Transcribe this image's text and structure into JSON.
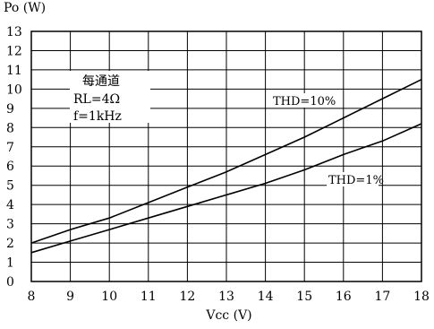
{
  "chart_data": {
    "type": "line",
    "ylabel": "Po  (W)",
    "xlabel": "Vcc  (V)",
    "xlim": [
      8,
      18
    ],
    "ylim": [
      0,
      13
    ],
    "x_ticks": [
      "8",
      "9",
      "10",
      "11",
      "12",
      "13",
      "14",
      "15",
      "16",
      "17",
      "18"
    ],
    "y_ticks": [
      "0",
      "1",
      "2",
      "3",
      "4",
      "5",
      "6",
      "7",
      "8",
      "9",
      "10",
      "11",
      "12",
      "13"
    ],
    "grid": true,
    "annotation": [
      "每通道",
      "RL=4Ω",
      "f=1kHz"
    ],
    "series": [
      {
        "name": "THD=10%",
        "x": [
          8,
          9,
          10,
          11,
          12,
          13,
          14,
          15,
          16,
          17,
          18
        ],
        "y": [
          2.0,
          2.7,
          3.3,
          4.1,
          4.9,
          5.7,
          6.6,
          7.5,
          8.5,
          9.5,
          10.5
        ]
      },
      {
        "name": "THD=1%",
        "x": [
          8,
          9,
          10,
          11,
          12,
          13,
          14,
          15,
          16,
          17,
          18
        ],
        "y": [
          1.5,
          2.1,
          2.7,
          3.3,
          3.9,
          4.5,
          5.1,
          5.8,
          6.6,
          7.3,
          8.2
        ]
      }
    ]
  }
}
